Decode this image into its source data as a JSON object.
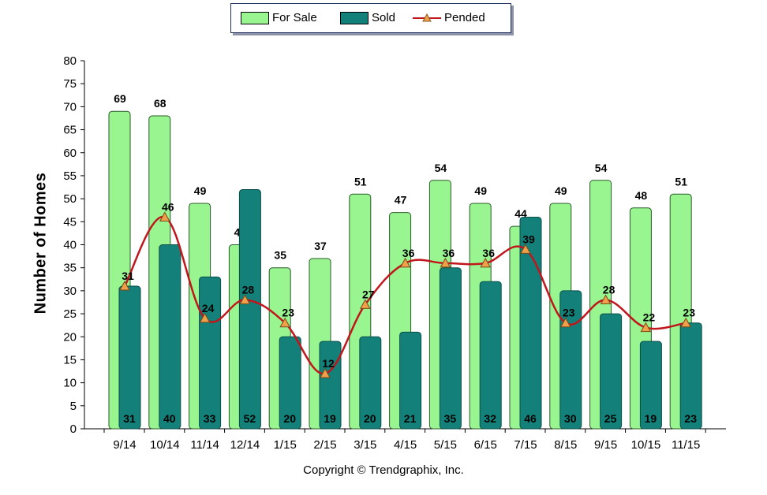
{
  "chart_data": {
    "type": "bar",
    "ylabel": "Number of Homes",
    "ylim": [
      0,
      80
    ],
    "yticks": [
      0,
      5,
      10,
      15,
      20,
      25,
      30,
      35,
      40,
      45,
      50,
      55,
      60,
      65,
      70,
      75,
      80
    ],
    "categories": [
      "9/14",
      "10/14",
      "11/14",
      "12/14",
      "1/15",
      "2/15",
      "3/15",
      "4/15",
      "5/15",
      "6/15",
      "7/15",
      "8/15",
      "9/15",
      "10/15",
      "11/15"
    ],
    "series": [
      {
        "name": "For Sale",
        "kind": "bar",
        "color": "#98f590",
        "values": [
          69,
          68,
          49,
          40,
          35,
          37,
          51,
          47,
          54,
          49,
          44,
          49,
          54,
          48,
          51
        ]
      },
      {
        "name": "Sold",
        "kind": "bar",
        "color": "#138079",
        "values": [
          31,
          40,
          33,
          52,
          20,
          19,
          20,
          21,
          35,
          32,
          46,
          30,
          25,
          19,
          23
        ]
      },
      {
        "name": "Pended",
        "kind": "line",
        "color": "#c0161c",
        "marker_color": "#f0a04a",
        "values": [
          31,
          46,
          24,
          28,
          23,
          12,
          27,
          36,
          36,
          36,
          39,
          23,
          28,
          22,
          23
        ]
      }
    ],
    "grid": false,
    "legend_position": "top"
  },
  "legend": {
    "for_sale": "For Sale",
    "sold": "Sold",
    "pended": "Pended"
  },
  "footer": {
    "copyright": "Copyright © Trendgraphix, Inc."
  }
}
